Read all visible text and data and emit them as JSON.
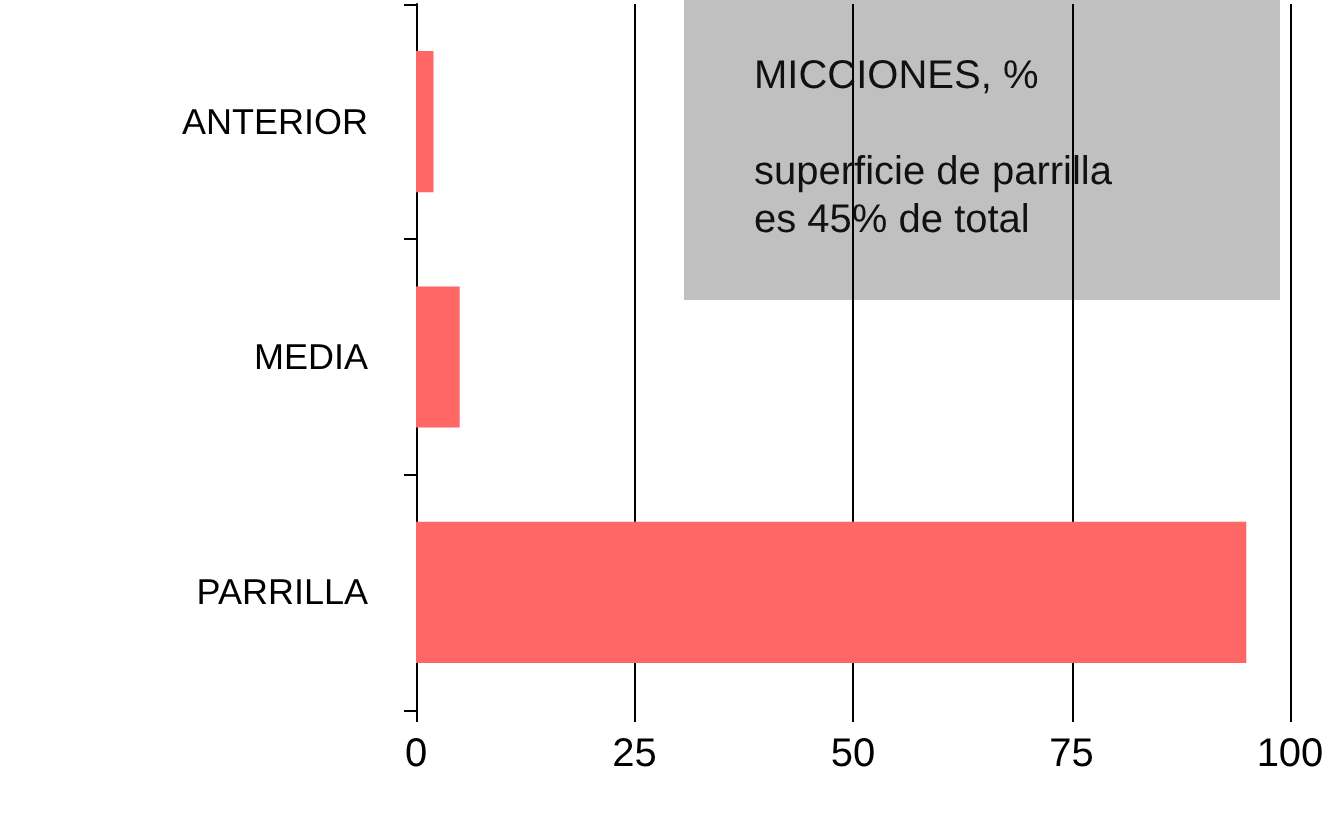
{
  "chart_data": {
    "type": "bar",
    "orientation": "horizontal",
    "title": "MICCIONES, %",
    "subtitle": "superficie de parrilla\nes 45% de total",
    "categories": [
      "ANTERIOR",
      "MEDIA",
      "PARRILLA"
    ],
    "values": [
      2,
      5,
      95
    ],
    "color": "#ff6666",
    "xlim": [
      0,
      100
    ],
    "xticks": [
      0,
      25,
      50,
      75,
      100
    ],
    "grid": "x"
  }
}
